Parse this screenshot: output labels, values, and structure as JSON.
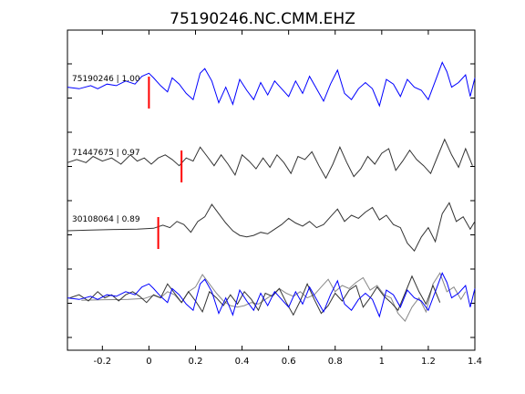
{
  "chart_data": {
    "type": "line",
    "title": "75190246.NC.CMM.EHZ",
    "xlabel": "",
    "ylabel": "",
    "xlim": [
      -0.35,
      1.4
    ],
    "x_ticks": [
      -0.2,
      0,
      0.2,
      0.4,
      0.6,
      0.8,
      1,
      1.2,
      1.4
    ],
    "x_tick_labels": [
      "-0.2",
      "0",
      "0.2",
      "0.4",
      "0.6",
      "0.8",
      "1",
      "1.2",
      "1.4"
    ],
    "grid": false,
    "legend": "none",
    "traces": [
      {
        "label": "75190246 | 1.00",
        "color": "#0000ff",
        "pick_time": 0.0,
        "t": [
          -0.35,
          -0.3,
          -0.25,
          -0.22,
          -0.18,
          -0.14,
          -0.1,
          -0.06,
          -0.03,
          0.0,
          0.02,
          0.05,
          0.08,
          0.1,
          0.13,
          0.16,
          0.19,
          0.22,
          0.24,
          0.27,
          0.3,
          0.33,
          0.36,
          0.39,
          0.42,
          0.45,
          0.48,
          0.51,
          0.54,
          0.57,
          0.6,
          0.63,
          0.66,
          0.69,
          0.72,
          0.75,
          0.78,
          0.81,
          0.84,
          0.87,
          0.9,
          0.93,
          0.96,
          0.99,
          1.02,
          1.05,
          1.08,
          1.11,
          1.14,
          1.17,
          1.2,
          1.23,
          1.26,
          1.28,
          1.3,
          1.33,
          1.36,
          1.38,
          1.4
        ],
        "amp": [
          0.1,
          0.05,
          0.15,
          0.05,
          0.2,
          0.15,
          0.3,
          0.2,
          0.45,
          0.55,
          0.4,
          0.15,
          -0.05,
          0.4,
          0.2,
          -0.1,
          -0.3,
          0.55,
          0.7,
          0.3,
          -0.4,
          0.1,
          -0.45,
          0.35,
          0.0,
          -0.3,
          0.25,
          -0.15,
          0.3,
          0.05,
          -0.2,
          0.3,
          -0.1,
          0.45,
          0.05,
          -0.35,
          0.2,
          0.65,
          -0.1,
          -0.3,
          0.05,
          0.25,
          0.05,
          -0.5,
          0.35,
          0.2,
          -0.2,
          0.35,
          0.1,
          0.0,
          -0.3,
          0.3,
          0.9,
          0.6,
          0.1,
          0.25,
          0.5,
          -0.2,
          0.4
        ]
      },
      {
        "label": "71447675 | 0.97",
        "color": "#333333",
        "pick_time": 0.14,
        "t": [
          -0.35,
          -0.31,
          -0.27,
          -0.24,
          -0.2,
          -0.16,
          -0.12,
          -0.08,
          -0.05,
          -0.02,
          0.01,
          0.04,
          0.07,
          0.1,
          0.13,
          0.16,
          0.19,
          0.22,
          0.25,
          0.28,
          0.31,
          0.34,
          0.37,
          0.4,
          0.43,
          0.46,
          0.49,
          0.52,
          0.55,
          0.58,
          0.61,
          0.64,
          0.67,
          0.7,
          0.73,
          0.76,
          0.79,
          0.82,
          0.85,
          0.88,
          0.91,
          0.94,
          0.97,
          1.0,
          1.03,
          1.06,
          1.09,
          1.12,
          1.15,
          1.18,
          1.21,
          1.24,
          1.27,
          1.3,
          1.33,
          1.36,
          1.39
        ],
        "amp": [
          0.05,
          0.15,
          0.05,
          0.25,
          0.1,
          0.2,
          0.0,
          0.3,
          0.1,
          0.2,
          0.0,
          0.2,
          0.3,
          0.15,
          -0.05,
          0.2,
          0.1,
          0.55,
          0.25,
          -0.05,
          0.3,
          0.0,
          -0.35,
          0.3,
          0.1,
          -0.15,
          0.2,
          -0.1,
          0.3,
          0.05,
          -0.3,
          0.25,
          0.15,
          0.4,
          -0.05,
          -0.45,
          0.0,
          0.55,
          0.05,
          -0.4,
          -0.15,
          0.25,
          0.0,
          0.35,
          0.5,
          -0.2,
          0.1,
          0.45,
          0.15,
          -0.05,
          -0.3,
          0.25,
          0.8,
          0.3,
          -0.1,
          0.5,
          -0.05
        ]
      },
      {
        "label": "30108064 | 0.89",
        "color": "#333333",
        "pick_time": 0.04,
        "t": [
          -0.35,
          -0.25,
          -0.15,
          -0.05,
          0.02,
          0.06,
          0.09,
          0.12,
          0.15,
          0.18,
          0.21,
          0.24,
          0.27,
          0.3,
          0.33,
          0.36,
          0.39,
          0.42,
          0.45,
          0.48,
          0.51,
          0.54,
          0.57,
          0.6,
          0.63,
          0.66,
          0.69,
          0.72,
          0.75,
          0.78,
          0.81,
          0.84,
          0.87,
          0.9,
          0.93,
          0.96,
          0.99,
          1.02,
          1.05,
          1.08,
          1.11,
          1.14,
          1.17,
          1.2,
          1.23,
          1.26,
          1.29,
          1.32,
          1.35,
          1.38,
          1.4
        ],
        "amp": [
          0.0,
          0.02,
          0.04,
          0.05,
          0.08,
          0.18,
          0.1,
          0.3,
          0.2,
          -0.05,
          0.3,
          0.45,
          0.85,
          0.55,
          0.25,
          0.0,
          -0.15,
          -0.2,
          -0.15,
          -0.05,
          -0.1,
          0.05,
          0.2,
          0.4,
          0.25,
          0.15,
          0.3,
          0.1,
          0.2,
          0.45,
          0.7,
          0.3,
          0.5,
          0.4,
          0.6,
          0.75,
          0.35,
          0.5,
          0.2,
          0.1,
          -0.4,
          -0.65,
          -0.2,
          0.1,
          -0.35,
          0.55,
          0.9,
          0.3,
          0.45,
          0.05,
          0.3
        ]
      }
    ],
    "aligned_overlay_colors": [
      "#0000ff",
      "#333333",
      "#888888"
    ]
  }
}
